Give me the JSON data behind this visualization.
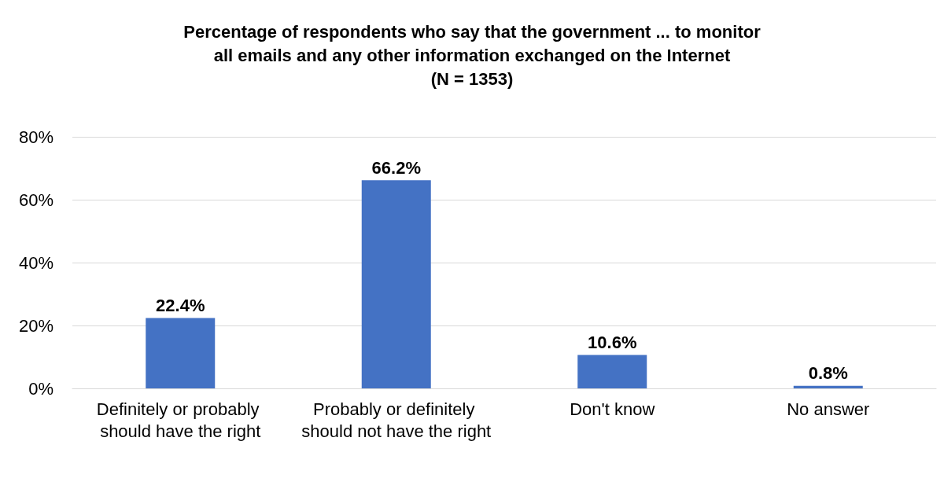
{
  "chart_data": {
    "type": "bar",
    "title": "Percentage of respondents who say that the government ... to monitor\nall emails and any other information exchanged on the Internet\n(N = 1353)",
    "categories": [
      "Definitely or probably should have the right",
      "Probably or definitely should not have the right",
      "Don't know",
      "No answer"
    ],
    "values": [
      22.4,
      66.2,
      10.6,
      0.8
    ],
    "value_labels": [
      "22.4%",
      "66.2%",
      "10.6%",
      "0.8%"
    ],
    "color": "#4472c4",
    "ylim": [
      0,
      80
    ],
    "yticks": [
      {
        "value": 0,
        "label": "0%"
      },
      {
        "value": 20,
        "label": "20%"
      },
      {
        "value": 40,
        "label": "40%"
      },
      {
        "value": 60,
        "label": "60%"
      },
      {
        "value": 80,
        "label": "80%"
      }
    ],
    "grid": "y"
  }
}
